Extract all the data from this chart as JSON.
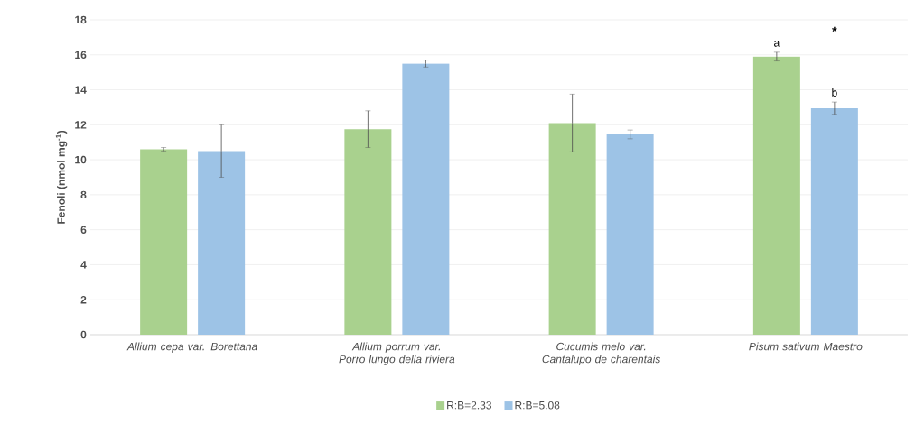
{
  "chart_data": {
    "type": "bar",
    "ylabel": "Fenoli (nmol mg$^{-1}$)",
    "categories": [
      "Allium cepa var. Borettana",
      "Allium porrum var. Porro lungo della riviera",
      "Cucumis melo var. Cantalupo de charentais",
      "Pisum sativum Maestro"
    ],
    "series": [
      {
        "name": "R:B=2.33",
        "color": "#a9d18e",
        "values": [
          10.6,
          11.75,
          12.1,
          15.9
        ],
        "errors": [
          0.1,
          1.05,
          1.65,
          0.25
        ]
      },
      {
        "name": "R:B=5.08",
        "color": "#9dc3e6",
        "values": [
          10.5,
          15.5,
          11.45,
          12.95
        ],
        "errors": [
          1.5,
          0.2,
          0.25,
          0.35
        ]
      }
    ],
    "ylim": [
      0,
      18
    ],
    "yticks": [
      0,
      2,
      4,
      6,
      8,
      10,
      12,
      14,
      16,
      18
    ],
    "grid": "y",
    "legend": "bottom",
    "annotations": [
      "a",
      "b",
      "*"
    ]
  }
}
